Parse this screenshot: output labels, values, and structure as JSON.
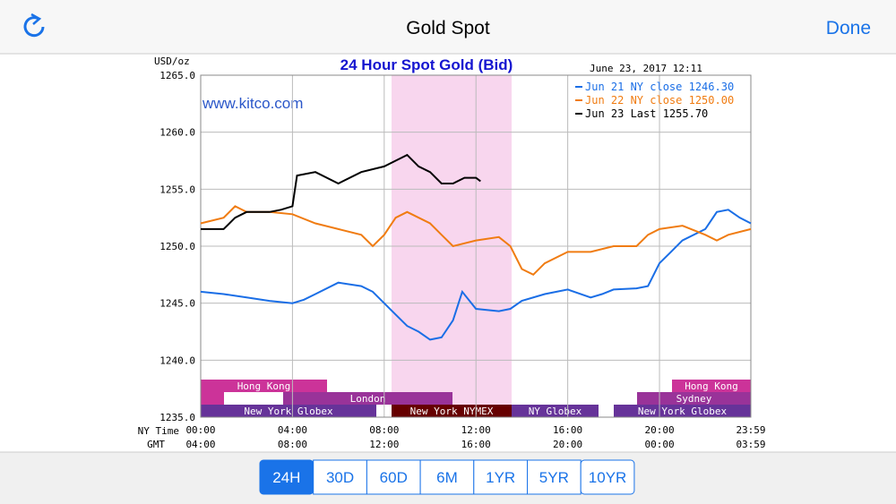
{
  "nav": {
    "title": "Gold Spot",
    "done": "Done"
  },
  "chart_data": {
    "type": "line",
    "title": "24 Hour Spot Gold (Bid)",
    "y_unit": "USD/oz",
    "timestamp": "June 23, 2017 12:11",
    "watermark": "www.kitco.com",
    "x_axis_label": "NY Time",
    "x2_axis_label": "GMT",
    "xlim": [
      0,
      23.983
    ],
    "ylim": [
      1235,
      1265
    ],
    "yticks": [
      {
        "value": 1235,
        "label": "1235.0"
      },
      {
        "value": 1240,
        "label": "1240.0"
      },
      {
        "value": 1245,
        "label": "1245.0"
      },
      {
        "value": 1250,
        "label": "1250.0"
      },
      {
        "value": 1255,
        "label": "1255.0"
      },
      {
        "value": 1260,
        "label": "1260.0"
      },
      {
        "value": 1265,
        "label": "1265.0"
      }
    ],
    "xticks": [
      {
        "value": 0,
        "label": "00:00"
      },
      {
        "value": 4,
        "label": "04:00"
      },
      {
        "value": 8,
        "label": "08:00"
      },
      {
        "value": 12,
        "label": "12:00"
      },
      {
        "value": 16,
        "label": "16:00"
      },
      {
        "value": 20,
        "label": "20:00"
      },
      {
        "value": 23.983,
        "label": "23:59"
      }
    ],
    "x2ticks": [
      {
        "value": 0,
        "label": "04:00"
      },
      {
        "value": 4,
        "label": "08:00"
      },
      {
        "value": 8,
        "label": "12:00"
      },
      {
        "value": 12,
        "label": "16:00"
      },
      {
        "value": 16,
        "label": "20:00"
      },
      {
        "value": 20,
        "label": "00:00"
      },
      {
        "value": 23.983,
        "label": "03:59"
      }
    ],
    "grid": true,
    "series": [
      {
        "name": "Jun 21 NY close 1246.30",
        "color": "#1a6ee6",
        "x": [
          0,
          1,
          2,
          3,
          4,
          4.5,
          5,
          6,
          7,
          7.5,
          8,
          8.5,
          9,
          9.5,
          10,
          10.5,
          11,
          11.4,
          12,
          13,
          13.5,
          14,
          15,
          16,
          17,
          17.5,
          18,
          19,
          19.5,
          20,
          20.5,
          21,
          22,
          22.5,
          23,
          23.5,
          23.983
        ],
        "values": [
          1246,
          1245.8,
          1245.5,
          1245.2,
          1245,
          1245.3,
          1245.8,
          1246.8,
          1246.5,
          1246,
          1245,
          1244,
          1243,
          1242.5,
          1241.8,
          1242,
          1243.5,
          1246,
          1244.5,
          1244.3,
          1244.5,
          1245.2,
          1245.8,
          1246.2,
          1245.5,
          1245.8,
          1246.2,
          1246.3,
          1246.5,
          1248.5,
          1249.5,
          1250.5,
          1251.5,
          1253,
          1253.2,
          1252.5,
          1252
        ]
      },
      {
        "name": "Jun 22 NY close 1250.00",
        "color": "#f07c12",
        "x": [
          0,
          1,
          1.5,
          2,
          3,
          4,
          5,
          6,
          7,
          7.5,
          8,
          8.5,
          9,
          10,
          10.5,
          11,
          12,
          13,
          13.5,
          14,
          14.5,
          15,
          16,
          17,
          18,
          19,
          19.5,
          20,
          21,
          22,
          22.5,
          23,
          23.983
        ],
        "values": [
          1252,
          1252.5,
          1253.5,
          1253,
          1253,
          1252.8,
          1252,
          1251.5,
          1251,
          1250,
          1251,
          1252.5,
          1253,
          1252,
          1251,
          1250,
          1250.5,
          1250.8,
          1250,
          1248,
          1247.5,
          1248.5,
          1249.5,
          1249.5,
          1250,
          1250,
          1251,
          1251.5,
          1251.8,
          1251,
          1250.5,
          1251,
          1251.5
        ]
      },
      {
        "name": "Jun 23 Last 1255.70",
        "color": "#000000",
        "x": [
          0,
          1,
          1.5,
          2,
          3,
          3.5,
          4,
          4.2,
          5,
          6,
          7,
          8,
          8.5,
          9,
          9.5,
          10,
          10.5,
          11,
          11.5,
          12,
          12.2
        ],
        "values": [
          1251.5,
          1251.5,
          1252.5,
          1253,
          1253,
          1253.2,
          1253.5,
          1256.2,
          1256.5,
          1255.5,
          1256.5,
          1257,
          1257.5,
          1258,
          1257,
          1256.5,
          1255.5,
          1255.5,
          1256,
          1256,
          1255.7
        ]
      }
    ],
    "sessions": [
      "Hong Kong",
      "Hong Kong",
      "London",
      "Sydney",
      "New York Globex",
      "New York NYMEX",
      "NY Globex",
      "New York Globex"
    ]
  },
  "range_buttons": [
    "24H",
    "30D",
    "60D",
    "6M",
    "1YR",
    "5YR",
    "10YR"
  ]
}
